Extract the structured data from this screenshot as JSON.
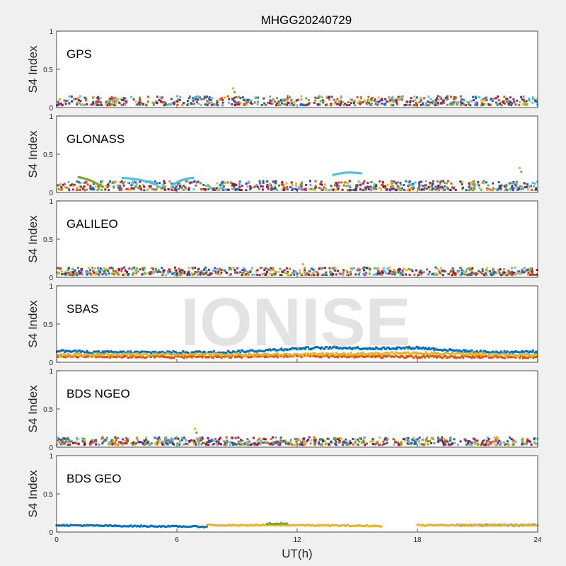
{
  "title": "MHGG20240729",
  "watermark": "IONISE",
  "colors": {
    "background": "#f0f0f0",
    "plot_background": "#ffffff",
    "axis": "#262626",
    "watermark": "#d9d9d9",
    "palette": [
      "#0072bd",
      "#d95319",
      "#edb120",
      "#7e2f8e",
      "#77ac30",
      "#4dbeee",
      "#a2142f"
    ]
  },
  "chart_data": [
    {
      "type": "scatter",
      "panel_label": "GPS",
      "ylabel": "S4 Index",
      "xlabel": "",
      "ylim": [
        0,
        1
      ],
      "yticks": [
        0,
        0.5,
        1
      ],
      "ytick_labels": [
        "0",
        "0.5",
        "1"
      ],
      "xlim": [
        0,
        24
      ],
      "xticks": [
        0,
        6,
        12,
        18,
        24
      ],
      "xtick_labels": [],
      "grid": false,
      "series_count": 7,
      "typical_s4_range": [
        0.03,
        0.15
      ],
      "peak_s4": {
        "x": 8.8,
        "y": 0.25
      }
    },
    {
      "type": "scatter",
      "panel_label": "GLONASS",
      "ylabel": "S4 Index",
      "xlabel": "",
      "ylim": [
        0,
        1
      ],
      "yticks": [
        0,
        0.5,
        1
      ],
      "ytick_labels": [
        "0",
        "0.5",
        "1"
      ],
      "xlim": [
        0,
        24
      ],
      "xticks": [
        0,
        6,
        12,
        18,
        24
      ],
      "xtick_labels": [],
      "grid": false,
      "series_count": 7,
      "typical_s4_range": [
        0.03,
        0.15
      ],
      "peak_s4": {
        "x": 23.1,
        "y": 0.32
      },
      "arcs": [
        {
          "x_start": 1.1,
          "x_end": 2.3,
          "s4_start": 0.2,
          "s4_end": 0.07,
          "series": 4
        },
        {
          "x_start": 3.3,
          "x_end": 5.0,
          "s4_start": 0.19,
          "s4_end": 0.1,
          "series": 5
        },
        {
          "x_start": 5.8,
          "x_end": 6.8,
          "s4_start": 0.1,
          "s4_end": 0.19,
          "series": 5
        },
        {
          "x_start": 13.8,
          "x_end": 15.2,
          "s4_start": 0.23,
          "s4_end": 0.25,
          "series": 5
        }
      ]
    },
    {
      "type": "scatter",
      "panel_label": "GALILEO",
      "ylabel": "S4 Index",
      "xlabel": "",
      "ylim": [
        0,
        1
      ],
      "yticks": [
        0,
        0.5,
        1
      ],
      "ytick_labels": [
        "0",
        "0.5",
        "1"
      ],
      "xlim": [
        0,
        24
      ],
      "xticks": [
        0,
        6,
        12,
        18,
        24
      ],
      "xtick_labels": [],
      "grid": false,
      "series_count": 7,
      "typical_s4_range": [
        0.03,
        0.13
      ],
      "peak_s4": {
        "x": 12.3,
        "y": 0.17
      }
    },
    {
      "type": "scatter",
      "panel_label": "SBAS",
      "ylabel": "S4 Index",
      "xlabel": "",
      "ylim": [
        0,
        1
      ],
      "yticks": [
        0,
        0.5,
        1
      ],
      "ytick_labels": [
        "0",
        "0.5",
        "1"
      ],
      "xlim": [
        0,
        24
      ],
      "xticks": [
        0,
        6,
        12,
        18,
        24
      ],
      "xtick_labels": [],
      "grid": false,
      "series": [
        {
          "color_index": 0,
          "profile": {
            "x": [
              0,
              2,
              5,
              8,
              10,
              12,
              14,
              16,
              18,
              20,
              22,
              24
            ],
            "s4": [
              0.15,
              0.13,
              0.13,
              0.13,
              0.15,
              0.18,
              0.19,
              0.18,
              0.19,
              0.15,
              0.13,
              0.14
            ]
          }
        },
        {
          "color_index": 1,
          "profile": {
            "x": [
              0,
              6,
              12,
              18,
              24
            ],
            "s4": [
              0.08,
              0.07,
              0.08,
              0.07,
              0.07
            ]
          }
        },
        {
          "color_index": 2,
          "profile": {
            "x": [
              0,
              6,
              12,
              18,
              24
            ],
            "s4": [
              0.1,
              0.1,
              0.1,
              0.12,
              0.09
            ]
          }
        }
      ]
    },
    {
      "type": "scatter",
      "panel_label": "BDS NGEO",
      "ylabel": "S4 Index",
      "xlabel": "",
      "ylim": [
        0,
        1
      ],
      "yticks": [
        0,
        0.5,
        1
      ],
      "ytick_labels": [
        "0",
        "0.5",
        "1"
      ],
      "xlim": [
        0,
        24
      ],
      "xticks": [
        0,
        6,
        12,
        18,
        24
      ],
      "xtick_labels": [],
      "grid": false,
      "series_count": 7,
      "typical_s4_range": [
        0.03,
        0.13
      ],
      "peak_s4": {
        "x": 6.9,
        "y": 0.24
      }
    },
    {
      "type": "scatter",
      "panel_label": "BDS GEO",
      "ylabel": "S4 Index",
      "xlabel": "UT(h)",
      "ylim": [
        0,
        1
      ],
      "yticks": [
        0,
        0.5,
        1
      ],
      "ytick_labels": [
        "0",
        "0.5",
        "1"
      ],
      "xlim": [
        0,
        24
      ],
      "xticks": [
        0,
        6,
        12,
        18,
        24
      ],
      "xtick_labels": [
        "0",
        "6",
        "12",
        "18",
        "24"
      ],
      "grid": false,
      "series": [
        {
          "color_index": 0,
          "segments": [
            {
              "x": [
                0,
                3,
                7.5
              ],
              "s4": [
                0.09,
                0.08,
                0.07
              ]
            },
            {
              "x": [
                20,
                24
              ],
              "s4": [
                0.09,
                0.09
              ]
            }
          ]
        },
        {
          "color_index": 2,
          "segments": [
            {
              "x": [
                7.5,
                12,
                16.2
              ],
              "s4": [
                0.09,
                0.09,
                0.08
              ]
            },
            {
              "x": [
                18,
                24
              ],
              "s4": [
                0.09,
                0.09
              ]
            }
          ]
        },
        {
          "color_index": 4,
          "segments": [
            {
              "x": [
                10.5,
                11.5
              ],
              "s4": [
                0.11,
                0.11
              ]
            }
          ]
        }
      ]
    }
  ]
}
